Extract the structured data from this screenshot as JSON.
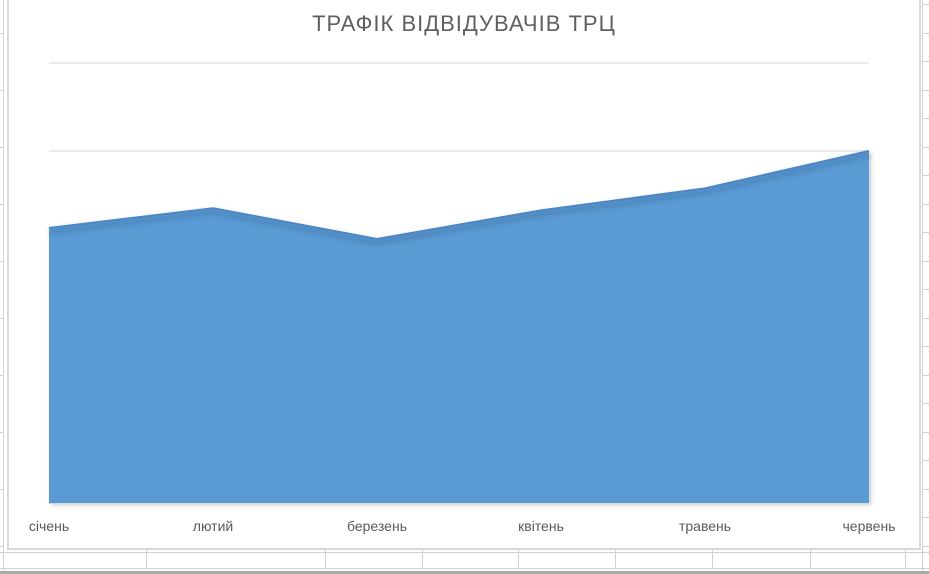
{
  "chart_data": {
    "type": "area",
    "title": "ТРАФІК ВІДВІДУВАЧІВ ТРЦ",
    "categories": [
      "січень",
      "лютий",
      "березень",
      "квітень",
      "травень",
      "червень"
    ],
    "values": [
      6250,
      6700,
      6000,
      6650,
      7150,
      8000
    ],
    "xlabel": "",
    "ylabel": "",
    "ylim": [
      0,
      10000
    ],
    "y_major_unit": 2000,
    "y_axis_labels_visible": false,
    "grid": "horizontal",
    "legend": "none"
  },
  "colors": {
    "series_fill": "#5B9BD5",
    "series_edge": "#4C86C4",
    "title_text": "#5F5F5F",
    "axis_text": "#595959",
    "gridline": "#EAEAEA",
    "axis_line": "#D9D9D9",
    "chart_border": "#D9D9D9",
    "sheet_gridline": "#D2D0D0",
    "bottom_bar": "#A9A9A9"
  }
}
